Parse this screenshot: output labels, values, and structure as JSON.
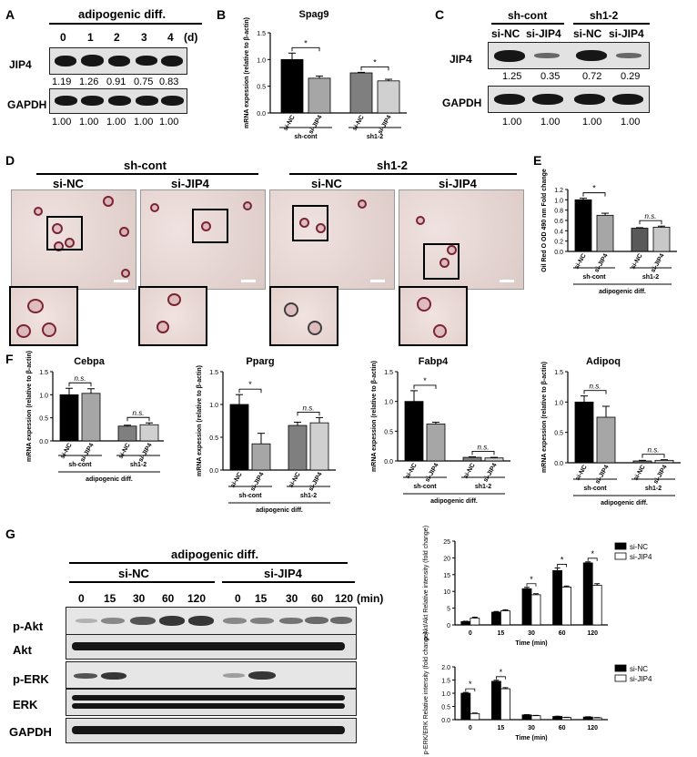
{
  "panels": {
    "A": "A",
    "B": "B",
    "C": "C",
    "D": "D",
    "E": "E",
    "F": "F",
    "G": "G"
  },
  "A": {
    "header": "adipogenic diff.",
    "days": [
      "0",
      "1",
      "2",
      "3",
      "4"
    ],
    "unit": "(d)",
    "rows": [
      "JIP4",
      "GAPDH"
    ],
    "jip4_values": [
      "1.19",
      "1.26",
      "0.91",
      "0.75",
      "0.83"
    ],
    "gapdh_values": [
      "1.00",
      "1.00",
      "1.00",
      "1.00",
      "1.00"
    ]
  },
  "C": {
    "groups": [
      "sh-cont",
      "sh1-2"
    ],
    "lanes": [
      "si-NC",
      "si-JIP4",
      "si-NC",
      "si-JIP4"
    ],
    "rows": [
      "JIP4",
      "GAPDH"
    ],
    "jip4_values": [
      "1.25",
      "0.35",
      "0.72",
      "0.29"
    ],
    "gapdh_values": [
      "1.00",
      "1.00",
      "1.00",
      "1.00"
    ]
  },
  "D": {
    "groups": [
      "sh-cont",
      "sh1-2"
    ],
    "images": [
      "si-NC",
      "si-JIP4",
      "si-NC",
      "si-JIP4"
    ]
  },
  "common": {
    "star": "*",
    "ns": "n.s.",
    "sh_cont": "sh-cont",
    "sh12": "sh1-2",
    "adipo": "adipogenic diff."
  },
  "chart_data": [
    {
      "id": "B",
      "type": "bar",
      "title": "Spag9",
      "ylabel": "mRNA expession (relative to β-actin)",
      "categories": [
        "si-NC",
        "si-JIP4",
        "si-NC",
        "si-JIP4"
      ],
      "values": [
        1.0,
        0.65,
        0.75,
        0.6
      ],
      "errors": [
        0.12,
        0.04,
        0.01,
        0.03
      ],
      "colors": [
        "#000000",
        "#a6a6a6",
        "#7f7f7f",
        "#d0d0d0"
      ],
      "ylim": [
        0,
        1.5
      ],
      "yticks": [
        0,
        0.5,
        1.0,
        1.5
      ],
      "groups": [
        "sh-cont",
        "sh1-2"
      ],
      "sig": [
        "*",
        "*"
      ]
    },
    {
      "id": "E",
      "type": "bar",
      "title": "",
      "ylabel": "Oil Red O OD 490 nm Fold change",
      "categories": [
        "si-NC",
        "si-JIP4",
        "si-NC",
        "si-JIP4"
      ],
      "values": [
        1.0,
        0.7,
        0.45,
        0.47
      ],
      "errors": [
        0.03,
        0.04,
        0.01,
        0.02
      ],
      "colors": [
        "#000000",
        "#a6a6a6",
        "#595959",
        "#c8c8c8"
      ],
      "ylim": [
        0,
        1.2
      ],
      "yticks": [
        0.0,
        0.2,
        0.4,
        0.6,
        0.8,
        1.0,
        1.2
      ],
      "groups": [
        "sh-cont",
        "sh1-2"
      ],
      "sig": [
        "*",
        "n.s."
      ],
      "footer": "adipogenic diff."
    },
    {
      "id": "F1",
      "type": "bar",
      "title": "Cebpa",
      "ylabel": "mRNA expession (relative to β-actin)",
      "categories": [
        "si-NC",
        "si-JIP4",
        "si-NC",
        "si-JIP4"
      ],
      "values": [
        1.0,
        1.03,
        0.32,
        0.35
      ],
      "errors": [
        0.14,
        0.1,
        0.02,
        0.04
      ],
      "colors": [
        "#000000",
        "#a6a6a6",
        "#7f7f7f",
        "#d0d0d0"
      ],
      "ylim": [
        0,
        1.5
      ],
      "yticks": [
        0,
        0.5,
        1.0,
        1.5
      ],
      "groups": [
        "sh-cont",
        "sh1-2"
      ],
      "sig": [
        "n.s.",
        "n.s."
      ],
      "footer": "adipogenic diff."
    },
    {
      "id": "F2",
      "type": "bar",
      "title": "Pparg",
      "ylabel": "mRNA expession (relative to β-actin)",
      "categories": [
        "si-NC",
        "si-JIP4",
        "si-NC",
        "si-JIP4"
      ],
      "values": [
        1.0,
        0.4,
        0.68,
        0.72
      ],
      "errors": [
        0.15,
        0.16,
        0.05,
        0.08
      ],
      "colors": [
        "#000000",
        "#a6a6a6",
        "#7f7f7f",
        "#d0d0d0"
      ],
      "ylim": [
        0,
        1.5
      ],
      "yticks": [
        0,
        0.5,
        1.0,
        1.5
      ],
      "groups": [
        "sh-cont",
        "sh1-2"
      ],
      "sig": [
        "*",
        "n.s."
      ],
      "footer": "adipogenic diff."
    },
    {
      "id": "F3",
      "type": "bar",
      "title": "Fabp4",
      "ylabel": "mRNA expession (relative to β-actin)",
      "categories": [
        "si-NC",
        "si-JIP4",
        "si-NC",
        "si-JIP4"
      ],
      "values": [
        1.0,
        0.62,
        0.06,
        0.05
      ],
      "errors": [
        0.18,
        0.03,
        0.01,
        0.01
      ],
      "colors": [
        "#000000",
        "#a6a6a6",
        "#7f7f7f",
        "#d0d0d0"
      ],
      "ylim": [
        0,
        1.5
      ],
      "yticks": [
        0,
        0.5,
        1.0,
        1.5
      ],
      "groups": [
        "sh-cont",
        "sh1-2"
      ],
      "sig": [
        "*",
        "n.s."
      ],
      "footer": "adipogenic diff."
    },
    {
      "id": "F4",
      "type": "bar",
      "title": "Adipoq",
      "ylabel": "mRNA expession (relative to β-actin)",
      "categories": [
        "si-NC",
        "si-JIP4",
        "si-NC",
        "si-JIP4"
      ],
      "values": [
        1.0,
        0.75,
        0.03,
        0.04
      ],
      "errors": [
        0.1,
        0.18,
        0.01,
        0.01
      ],
      "colors": [
        "#000000",
        "#a6a6a6",
        "#7f7f7f",
        "#d0d0d0"
      ],
      "ylim": [
        0,
        1.5
      ],
      "yticks": [
        0,
        0.5,
        1.0,
        1.5
      ],
      "groups": [
        "sh-cont",
        "sh1-2"
      ],
      "sig": [
        "n.s.",
        "n.s."
      ],
      "footer": "adipogenic diff."
    },
    {
      "id": "G1",
      "type": "bar",
      "title": "",
      "ylabel": "p-Akt/Akt Relative intensity (fold change)",
      "xlabel": "Time (min)",
      "categories": [
        "0",
        "15",
        "30",
        "60",
        "120"
      ],
      "series": [
        {
          "name": "si-NC",
          "values": [
            1.0,
            3.8,
            10.8,
            16.2,
            18.5
          ],
          "errors": [
            0.1,
            0.2,
            0.4,
            0.8,
            0.3
          ]
        },
        {
          "name": "si-JIP4",
          "values": [
            2.0,
            4.2,
            9.0,
            11.3,
            11.8
          ],
          "errors": [
            0.3,
            0.3,
            0.3,
            0.3,
            0.5
          ]
        }
      ],
      "ylim": [
        0,
        25
      ],
      "yticks": [
        0,
        5,
        10,
        15,
        20,
        25
      ],
      "sig": [
        "",
        "",
        "*",
        "*",
        "*"
      ]
    },
    {
      "id": "G2",
      "type": "bar",
      "title": "",
      "ylabel": "p-ERK/ERK Relative intensity (fold change)",
      "xlabel": "Time (min)",
      "categories": [
        "0",
        "15",
        "30",
        "60",
        "120"
      ],
      "series": [
        {
          "name": "si-NC",
          "values": [
            1.0,
            1.45,
            0.18,
            0.12,
            0.1
          ],
          "errors": [
            0.03,
            0.04,
            0.01,
            0.01,
            0.01
          ]
        },
        {
          "name": "si-JIP4",
          "values": [
            0.23,
            1.17,
            0.15,
            0.08,
            0.07
          ],
          "errors": [
            0.02,
            0.04,
            0.01,
            0.01,
            0.01
          ]
        }
      ],
      "ylim": [
        0,
        2.0
      ],
      "yticks": [
        0.0,
        0.5,
        1.0,
        1.5,
        2.0
      ],
      "sig": [
        "*",
        "*",
        "",
        "",
        ""
      ]
    }
  ],
  "G": {
    "header": "adipogenic diff.",
    "groups": [
      "si-NC",
      "si-JIP4"
    ],
    "times": [
      "0",
      "15",
      "30",
      "60",
      "120"
    ],
    "unit": "(min)",
    "rows": [
      "p-Akt",
      "Akt",
      "p-ERK",
      "ERK",
      "GAPDH"
    ],
    "legend": [
      "si-NC",
      "si-JIP4"
    ]
  }
}
